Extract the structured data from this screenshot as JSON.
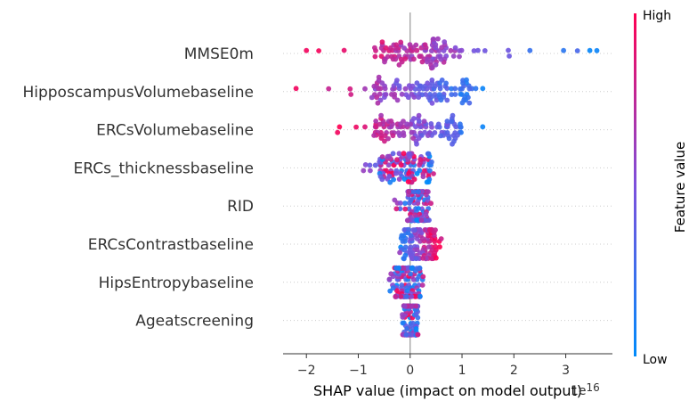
{
  "chart_data": {
    "type": "scatter",
    "subtype": "shap-beeswarm",
    "title": "",
    "xlabel": "SHAP value (impact on model output)",
    "x_offset_text": "1e16",
    "ylabel": "",
    "xlim": [
      -2.45,
      3.9
    ],
    "xticks": [
      -2,
      -1,
      0,
      1,
      2,
      3
    ],
    "xtick_labels": [
      "−2",
      "−1",
      "0",
      "1",
      "2",
      "3"
    ],
    "zero_line": true,
    "features": [
      {
        "name": "MMSE0m",
        "spread": [
          -2.0,
          3.6
        ],
        "dense_range": [
          -0.7,
          1.0
        ],
        "trend": "high feature values mostly negative-to-mid; low feature values large positive"
      },
      {
        "name": "HipposcampusVolumebaseline",
        "spread": [
          -2.2,
          1.4
        ],
        "dense_range": [
          -0.7,
          1.2
        ],
        "trend": "low values positive, high values negative"
      },
      {
        "name": "ERCsVolumebaseline",
        "spread": [
          -1.4,
          1.4
        ],
        "dense_range": [
          -0.7,
          1.0
        ],
        "trend": "low values positive, high values negative"
      },
      {
        "name": "ERCs_thicknessbaseline",
        "spread": [
          -0.9,
          0.45
        ],
        "dense_range": [
          -0.6,
          0.4
        ],
        "trend": "mixed"
      },
      {
        "name": "RID",
        "spread": [
          -0.3,
          0.4
        ],
        "dense_range": [
          -0.05,
          0.35
        ],
        "trend": "mixed"
      },
      {
        "name": "ERCsContrastbaseline",
        "spread": [
          -0.2,
          0.6
        ],
        "dense_range": [
          -0.15,
          0.5
        ],
        "trend": "high values positive"
      },
      {
        "name": "HipsEntropybaseline",
        "spread": [
          -0.4,
          0.25
        ],
        "dense_range": [
          -0.3,
          0.2
        ],
        "trend": "mixed"
      },
      {
        "name": "Ageatscreening",
        "spread": [
          -0.15,
          0.15
        ],
        "dense_range": [
          -0.15,
          0.15
        ],
        "trend": "mixed"
      }
    ],
    "colorbar": {
      "label": "Feature value",
      "high_label": "High",
      "low_label": "Low",
      "low_color": "#008bfb",
      "high_color": "#ff0052"
    },
    "grid": false,
    "legend": "colorbar-right"
  }
}
